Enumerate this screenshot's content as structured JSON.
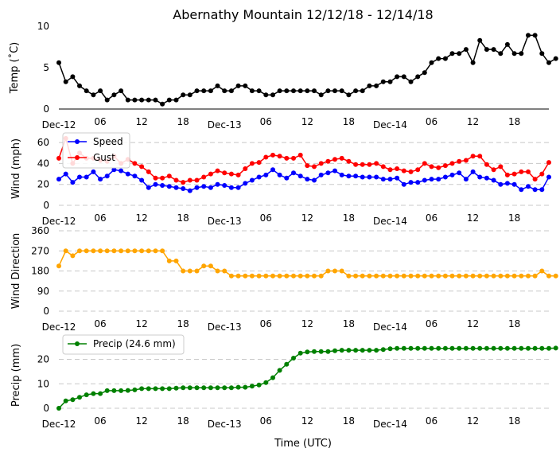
{
  "chart_data": {
    "type": "line",
    "title": "Abernathy Mountain 12/12/18 - 12/14/18",
    "xlabel": "Time (UTC)",
    "x_tick_labels": [
      "Dec-12",
      "06",
      "12",
      "18",
      "Dec-13",
      "06",
      "12",
      "18",
      "Dec-14",
      "06",
      "12",
      "18"
    ],
    "x_tick_hours": [
      0,
      6,
      12,
      18,
      24,
      30,
      36,
      42,
      48,
      54,
      60,
      66
    ],
    "hour_step": 1,
    "panels": [
      {
        "id": "temp",
        "ylabel": "Temp (˚C)",
        "ylim": [
          0,
          10
        ],
        "yticks": [
          0,
          5,
          10
        ],
        "grid": false,
        "legend": null,
        "series": [
          {
            "name": "Temp",
            "color": "#000000",
            "values": [
              5.6,
              3.3,
              3.9,
              2.8,
              2.2,
              1.7,
              2.2,
              1.1,
              1.7,
              2.2,
              1.1,
              1.1,
              1.1,
              1.1,
              1.1,
              0.6,
              1.1,
              1.1,
              1.7,
              1.7,
              2.2,
              2.2,
              2.2,
              2.8,
              2.2,
              2.2,
              2.8,
              2.8,
              2.2,
              2.2,
              1.7,
              1.7,
              2.2,
              2.2,
              2.2,
              2.2,
              2.2,
              2.2,
              1.7,
              2.2,
              2.2,
              2.2,
              1.7,
              2.2,
              2.2,
              2.8,
              2.8,
              3.3,
              3.3,
              3.9,
              3.9,
              3.3,
              3.9,
              4.4,
              5.6,
              6.1,
              6.1,
              6.7,
              6.7,
              7.2,
              5.6,
              8.3,
              7.2,
              7.2,
              6.7,
              7.8,
              6.7,
              6.7,
              8.9,
              8.9,
              6.7,
              5.6,
              6.1
            ]
          }
        ]
      },
      {
        "id": "wind",
        "ylabel": "Wind (mph)",
        "ylim": [
          0,
          70
        ],
        "yticks": [
          0,
          20,
          40,
          60
        ],
        "grid": true,
        "legend": "upper-left",
        "series": [
          {
            "name": "Speed",
            "color": "#0000ff",
            "values": [
              25,
              30,
              22,
              27,
              27,
              32,
              25,
              28,
              34,
              33,
              30,
              28,
              24,
              17,
              20,
              19,
              18,
              17,
              16,
              14,
              17,
              18,
              17,
              20,
              19,
              17,
              17,
              21,
              24,
              27,
              29,
              34,
              29,
              26,
              31,
              28,
              25,
              24,
              29,
              31,
              33,
              29,
              28,
              28,
              27,
              27,
              27,
              25,
              25,
              26,
              20,
              22,
              22,
              24,
              25,
              25,
              27,
              29,
              31,
              25,
              32,
              27,
              26,
              24,
              20,
              21,
              20,
              15,
              18,
              15,
              15,
              27
            ]
          },
          {
            "name": "Gust",
            "color": "#ff0000",
            "values": [
              45,
              64,
              40,
              50,
              45,
              45,
              43,
              42,
              47,
              40,
              44,
              40,
              37,
              32,
              26,
              26,
              28,
              24,
              22,
              24,
              24,
              27,
              30,
              33,
              31,
              30,
              29,
              35,
              40,
              41,
              46,
              48,
              47,
              45,
              45,
              48,
              38,
              37,
              40,
              42,
              44,
              45,
              42,
              39,
              39,
              39,
              40,
              37,
              34,
              35,
              33,
              32,
              34,
              40,
              37,
              36,
              38,
              40,
              42,
              43,
              47,
              47,
              39,
              34,
              37,
              29,
              30,
              32,
              32,
              25,
              30,
              41
            ]
          }
        ]
      },
      {
        "id": "wdir",
        "ylabel": "Wind Direction",
        "ylim": [
          0,
          360
        ],
        "yticks": [
          0,
          90,
          180,
          270,
          360
        ],
        "grid": true,
        "legend": null,
        "series": [
          {
            "name": "Wind Direction",
            "color": "#ffa500",
            "values": [
              202,
              270,
              248,
              270,
              270,
              270,
              270,
              270,
              270,
              270,
              270,
              270,
              270,
              270,
              270,
              270,
              225,
              225,
              180,
              180,
              180,
              202,
              202,
              180,
              180,
              158,
              158,
              158,
              158,
              158,
              158,
              158,
              158,
              158,
              158,
              158,
              158,
              158,
              158,
              180,
              180,
              180,
              158,
              158,
              158,
              158,
              158,
              158,
              158,
              158,
              158,
              158,
              158,
              158,
              158,
              158,
              158,
              158,
              158,
              158,
              158,
              158,
              158,
              158,
              158,
              158,
              158,
              158,
              158,
              158,
              180,
              158,
              158
            ]
          }
        ]
      },
      {
        "id": "precip",
        "ylabel": "Precip (mm)",
        "ylim": [
          0,
          27
        ],
        "yticks": [
          0,
          10,
          20
        ],
        "grid": true,
        "legend": "upper-left",
        "series": [
          {
            "name": "Precip (24.6 mm)",
            "color": "#008000",
            "values": [
              0,
              3,
              3.5,
              4.5,
              5.5,
              6,
              6,
              7.2,
              7.2,
              7.2,
              7.3,
              7.5,
              8,
              8,
              8,
              8,
              8,
              8.2,
              8.4,
              8.4,
              8.4,
              8.4,
              8.4,
              8.4,
              8.4,
              8.4,
              8.6,
              8.6,
              9,
              9.5,
              10.5,
              12.5,
              15.5,
              18,
              20.5,
              22.5,
              23,
              23.2,
              23.2,
              23.2,
              23.5,
              23.7,
              23.7,
              23.7,
              23.7,
              23.7,
              23.7,
              24,
              24.3,
              24.5,
              24.5,
              24.5,
              24.5,
              24.5,
              24.5,
              24.5,
              24.5,
              24.5,
              24.5,
              24.5,
              24.5,
              24.5,
              24.5,
              24.5,
              24.5,
              24.5,
              24.5,
              24.5,
              24.5,
              24.5,
              24.5,
              24.5,
              24.6
            ]
          }
        ]
      }
    ]
  }
}
